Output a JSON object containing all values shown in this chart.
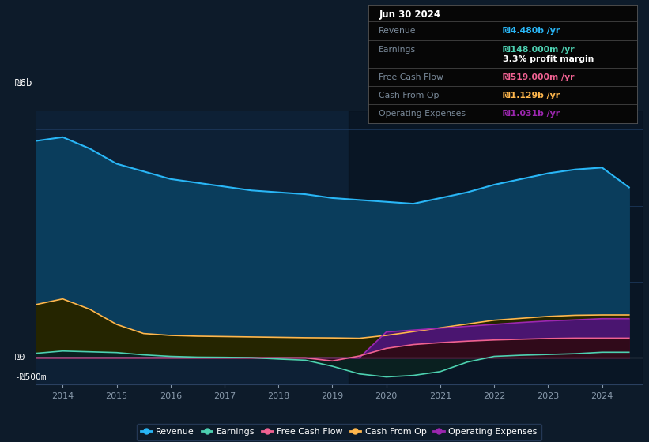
{
  "bg_color": "#0d1b2a",
  "plot_bg_color": "#0d2035",
  "grid_color": "#1e3a5f",
  "ylabel_text": "₪6b",
  "y0_text": "₪0",
  "yneg_text": "-₪500m",
  "years": [
    2013.5,
    2014.0,
    2014.5,
    2015.0,
    2015.5,
    2016.0,
    2016.5,
    2017.0,
    2017.5,
    2018.0,
    2018.5,
    2019.0,
    2019.5,
    2020.0,
    2020.5,
    2021.0,
    2021.5,
    2022.0,
    2022.5,
    2023.0,
    2023.5,
    2024.0,
    2024.5
  ],
  "revenue": [
    5700,
    5800,
    5500,
    5100,
    4900,
    4700,
    4600,
    4500,
    4400,
    4350,
    4300,
    4200,
    4150,
    4100,
    4050,
    4200,
    4350,
    4550,
    4700,
    4850,
    4950,
    5000,
    4480
  ],
  "earnings": [
    120,
    180,
    160,
    140,
    80,
    40,
    20,
    15,
    5,
    -30,
    -60,
    -220,
    -420,
    -500,
    -460,
    -360,
    -110,
    40,
    70,
    90,
    110,
    148,
    148
  ],
  "free_cash_flow": [
    0,
    0,
    0,
    0,
    0,
    0,
    0,
    0,
    0,
    0,
    0,
    -80,
    50,
    250,
    350,
    400,
    440,
    470,
    490,
    510,
    519,
    519,
    519
  ],
  "cash_from_op": [
    1400,
    1550,
    1280,
    880,
    640,
    590,
    570,
    560,
    550,
    540,
    530,
    525,
    515,
    590,
    690,
    790,
    890,
    990,
    1040,
    1090,
    1120,
    1129,
    1129
  ],
  "operating_expenses": [
    0,
    0,
    0,
    0,
    0,
    0,
    0,
    0,
    0,
    0,
    0,
    0,
    0,
    680,
    730,
    780,
    830,
    880,
    930,
    970,
    1000,
    1031,
    1031
  ],
  "revenue_color": "#29b6f6",
  "earnings_color": "#4dd0b1",
  "fcf_color": "#f06292",
  "cashop_color": "#ffb74d",
  "opex_color": "#9c27b0",
  "revenue_fill": "#0a3d5c",
  "cashop_fill": "#252500",
  "opex_fill": "#4a1570",
  "tooltip_date": "Jun 30 2024",
  "tooltip_revenue": "₪4.480b /yr",
  "tooltip_earnings": "₪148.000m /yr",
  "tooltip_margin": "3.3% profit margin",
  "tooltip_fcf": "₪519.000m /yr",
  "tooltip_cashop": "₪1.129b /yr",
  "tooltip_opex": "₪1.031b /yr",
  "xmin": 2013.5,
  "xmax": 2024.75,
  "ymin": -700,
  "ymax": 6500,
  "highlight_xstart": 2019.3,
  "highlight_xend": 2024.75
}
